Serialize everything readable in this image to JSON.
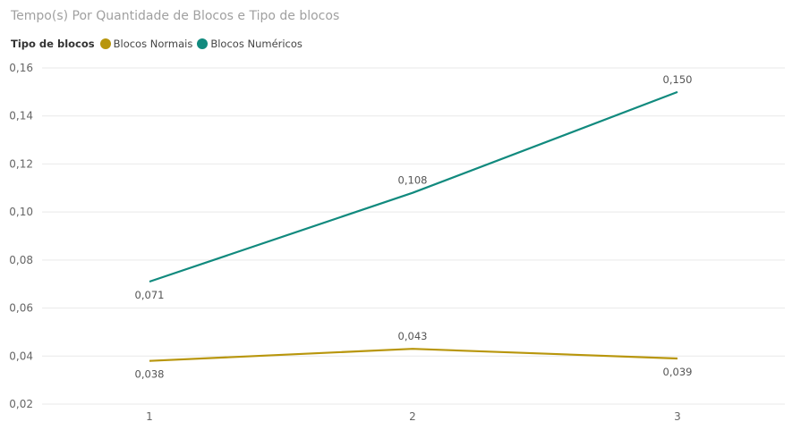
{
  "colors": {
    "normais": "#b8960c",
    "numericos": "#118a7e"
  },
  "chart_data": {
    "type": "line",
    "title": "Tempo(s) Por Quantidade de Blocos e Tipo de blocos",
    "legend_title": "Tipo de blocos",
    "legend_position": "top-left",
    "x": [
      "1",
      "2",
      "3"
    ],
    "ylim": [
      0.02,
      0.16
    ],
    "yticks": [
      "0,02",
      "0,04",
      "0,06",
      "0,08",
      "0,10",
      "0,12",
      "0,14",
      "0,16"
    ],
    "grid": true,
    "series": [
      {
        "name": "Blocos Normais",
        "values": [
          0.038,
          0.043,
          0.039
        ],
        "labels": [
          "0,038",
          "0,043",
          "0,039"
        ],
        "label_above": [
          false,
          true,
          false
        ]
      },
      {
        "name": "Blocos Numéricos",
        "values": [
          0.071,
          0.108,
          0.15
        ],
        "labels": [
          "0,071",
          "0,108",
          "0,150"
        ],
        "label_above": [
          false,
          true,
          true
        ]
      }
    ]
  }
}
